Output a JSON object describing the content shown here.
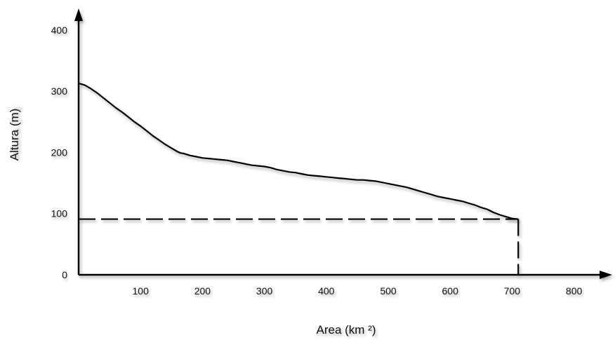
{
  "chart_data": {
    "type": "line",
    "xlabel": "Area (km ²)",
    "ylabel": "Altura (m)",
    "xlim": [
      0,
      850
    ],
    "ylim": [
      0,
      410
    ],
    "x_ticks": [
      "100",
      "200",
      "300",
      "400",
      "500",
      "600",
      "700",
      "800"
    ],
    "y_ticks": [
      "0",
      "100",
      "200",
      "300",
      "400"
    ],
    "grid": false,
    "legend": "none",
    "line_color": "#000000",
    "series": [
      {
        "x": [
          0,
          10,
          20,
          30,
          40,
          50,
          60,
          70,
          80,
          90,
          100,
          110,
          120,
          130,
          140,
          150,
          160,
          165,
          170,
          180,
          190,
          200,
          210,
          220,
          230,
          240,
          250,
          260,
          270,
          280,
          290,
          300,
          310,
          320,
          330,
          340,
          350,
          360,
          370,
          380,
          390,
          400,
          410,
          420,
          430,
          440,
          450,
          460,
          470,
          480,
          490,
          500,
          510,
          520,
          530,
          540,
          550,
          560,
          570,
          580,
          590,
          600,
          610,
          620,
          630,
          640,
          650,
          660,
          670,
          680,
          690,
          700,
          710
        ],
        "y": [
          313,
          310,
          304,
          297,
          289,
          281,
          273,
          266,
          258,
          250,
          243,
          235,
          227,
          220,
          213,
          207,
          201,
          199,
          198,
          195,
          193,
          191,
          190,
          189,
          188,
          187,
          185,
          183,
          181,
          179,
          178,
          177,
          175,
          172,
          170,
          168,
          167,
          165,
          163,
          162,
          161,
          160,
          159,
          158,
          157,
          156,
          155,
          155,
          154,
          153,
          151,
          149,
          147,
          145,
          143,
          140,
          137,
          134,
          131,
          128,
          126,
          124,
          122,
          120,
          117,
          114,
          110,
          107,
          102,
          98,
          95,
          92,
          91
        ]
      }
    ],
    "reference": {
      "x": 710,
      "y": 91,
      "style": "dashed"
    }
  }
}
